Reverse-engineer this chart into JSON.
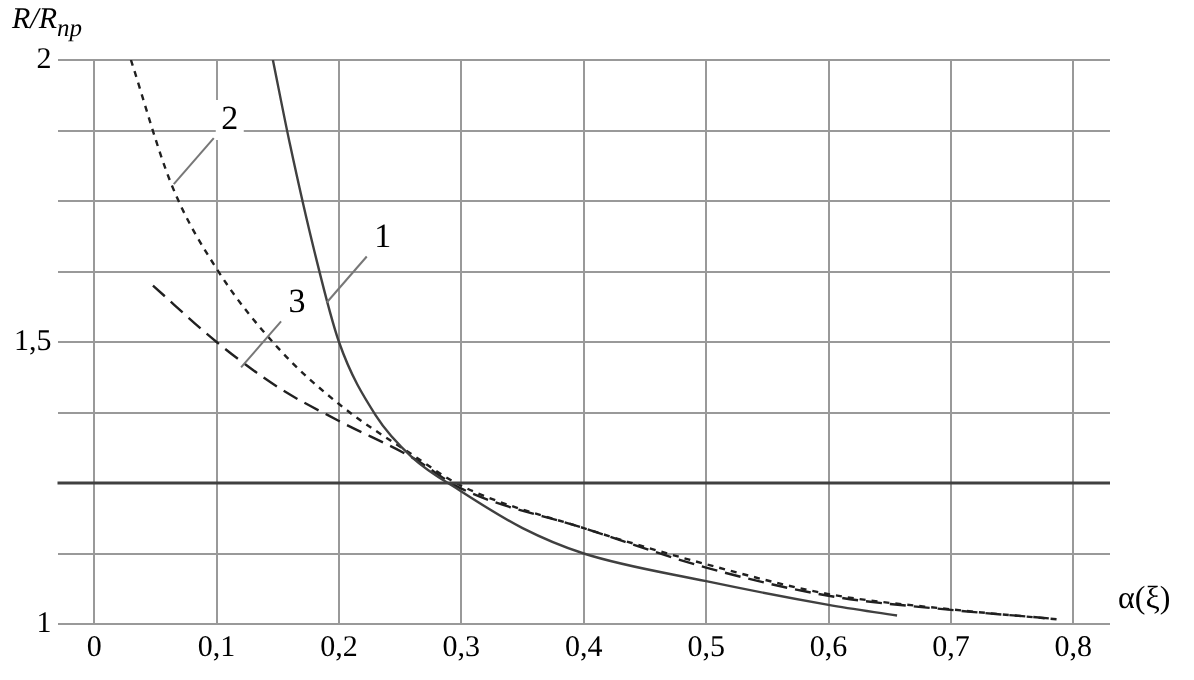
{
  "chart_data": {
    "type": "line",
    "ylabel": "R/R$_{np}$",
    "xlabel": "α(ξ)",
    "xlim": [
      -0.03,
      0.83
    ],
    "ylim": [
      1,
      2
    ],
    "xticks": [
      {
        "value": 0,
        "label": "0"
      },
      {
        "value": 0.1,
        "label": "0,1"
      },
      {
        "value": 0.2,
        "label": "0,2"
      },
      {
        "value": 0.3,
        "label": "0,3"
      },
      {
        "value": 0.4,
        "label": "0,4"
      },
      {
        "value": 0.5,
        "label": "0,5"
      },
      {
        "value": 0.6,
        "label": "0,6"
      },
      {
        "value": 0.7,
        "label": "0,7"
      },
      {
        "value": 0.8,
        "label": "0,8"
      }
    ],
    "yticks": [
      {
        "value": 1,
        "label": "1"
      },
      {
        "value": 1.125,
        "label": null
      },
      {
        "value": 1.25,
        "label": null
      },
      {
        "value": 1.375,
        "label": null
      },
      {
        "value": 1.5,
        "label": "1,5"
      },
      {
        "value": 1.625,
        "label": null
      },
      {
        "value": 1.75,
        "label": null
      },
      {
        "value": 1.875,
        "label": null
      },
      {
        "value": 2,
        "label": "2"
      }
    ],
    "grid": true,
    "legend": false,
    "marker": "none",
    "ref_lines": [
      {
        "axis": "y",
        "value": 1.25,
        "color": "#404040"
      }
    ],
    "series": [
      {
        "color": "#404040",
        "line_style": "solid",
        "x": [
          0.146,
          0.16,
          0.18,
          0.2,
          0.23,
          0.26,
          0.3,
          0.35,
          0.4,
          0.5,
          0.6,
          0.656
        ],
        "values": [
          2,
          1.85,
          1.66,
          1.5,
          1.37,
          1.295,
          1.235,
          1.17,
          1.125,
          1.076,
          1.034,
          1.015
        ]
      },
      {
        "color": "#202020",
        "line_style": "dotted",
        "x": [
          0.03,
          0.063,
          0.1,
          0.15,
          0.2,
          0.26,
          0.3,
          0.4,
          0.5,
          0.6,
          0.7,
          0.788
        ],
        "values": [
          2,
          1.78,
          1.63,
          1.49,
          1.39,
          1.3,
          1.245,
          1.17,
          1.106,
          1.053,
          1.026,
          1.008
        ]
      },
      {
        "color": "#202020",
        "line_style": "dashed",
        "x": [
          0.048,
          0.1,
          0.15,
          0.2,
          0.26,
          0.3,
          0.4,
          0.5,
          0.6,
          0.7,
          0.78
        ],
        "values": [
          1.6,
          1.5,
          1.42,
          1.36,
          1.295,
          1.24,
          1.17,
          1.1,
          1.05,
          1.025,
          1.01
        ]
      }
    ],
    "annotations": [
      {
        "text": "1",
        "x": 0.19,
        "y": 1.57
      },
      {
        "text": "2",
        "x": 0.065,
        "y": 1.78
      },
      {
        "text": "3",
        "x": 0.12,
        "y": 1.455
      }
    ]
  }
}
